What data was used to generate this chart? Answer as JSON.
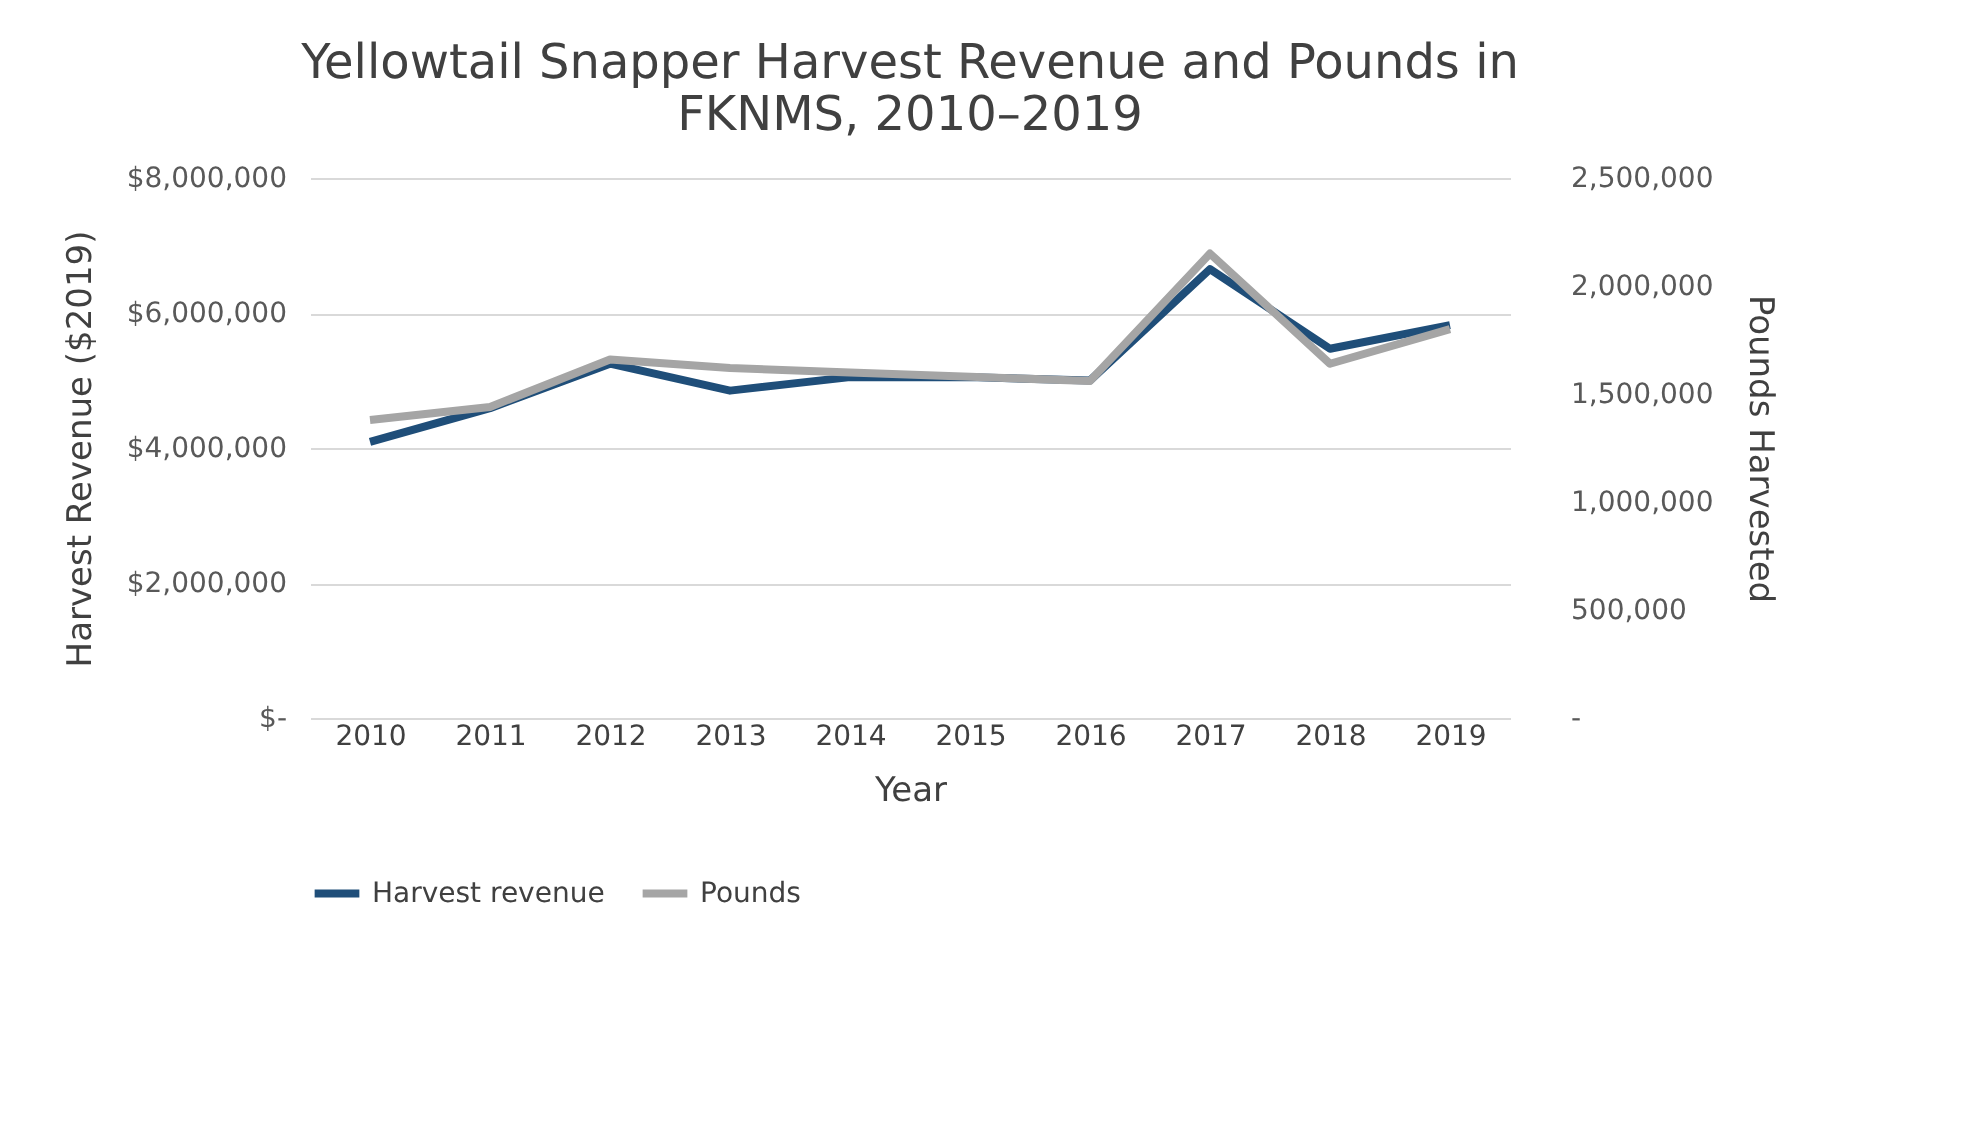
{
  "chart_data": {
    "type": "line",
    "title": [
      "Yellowtail Snapper Harvest Revenue and Pounds in",
      "FKNMS, 2010–2019"
    ],
    "xlabel": "Year",
    "ylabel": "Harvest Revenue ($2019)",
    "y2label": "Pounds Harvested",
    "categories": [
      "2010",
      "2011",
      "2012",
      "2013",
      "2014",
      "2015",
      "2016",
      "2017",
      "2018",
      "2019"
    ],
    "series": [
      {
        "name": "Harvest revenue",
        "color": "#1f4e79",
        "axis": "y",
        "values": [
          4090000,
          4590000,
          5250000,
          4850000,
          5050000,
          5050000,
          5000000,
          6650000,
          5470000,
          5820000
        ]
      },
      {
        "name": "Pounds",
        "color": "#a5a5a5",
        "axis": "y2",
        "values": [
          1380000,
          1440000,
          1660000,
          1620000,
          1600000,
          1580000,
          1560000,
          2150000,
          1640000,
          1800000
        ]
      }
    ],
    "ylim": [
      0,
      8000000
    ],
    "yticks": [
      {
        "value": 8000000,
        "label": "$8,000,000"
      },
      {
        "value": 6000000,
        "label": "$6,000,000"
      },
      {
        "value": 4000000,
        "label": "$4,000,000"
      },
      {
        "value": 2000000,
        "label": "$2,000,000"
      },
      {
        "value": 0,
        "label": "$-"
      }
    ],
    "y2lim": [
      0,
      2500000
    ],
    "y2ticks": [
      {
        "value": 2500000,
        "label": "2,500,000"
      },
      {
        "value": 2000000,
        "label": "2,000,000"
      },
      {
        "value": 1500000,
        "label": "1,500,000"
      },
      {
        "value": 1000000,
        "label": "1,000,000"
      },
      {
        "value": 500000,
        "label": "500,000"
      },
      {
        "value": 0,
        "label": "-"
      }
    ],
    "grid": "y",
    "legend": "bottom",
    "marker": "none",
    "line_style": "solid"
  }
}
